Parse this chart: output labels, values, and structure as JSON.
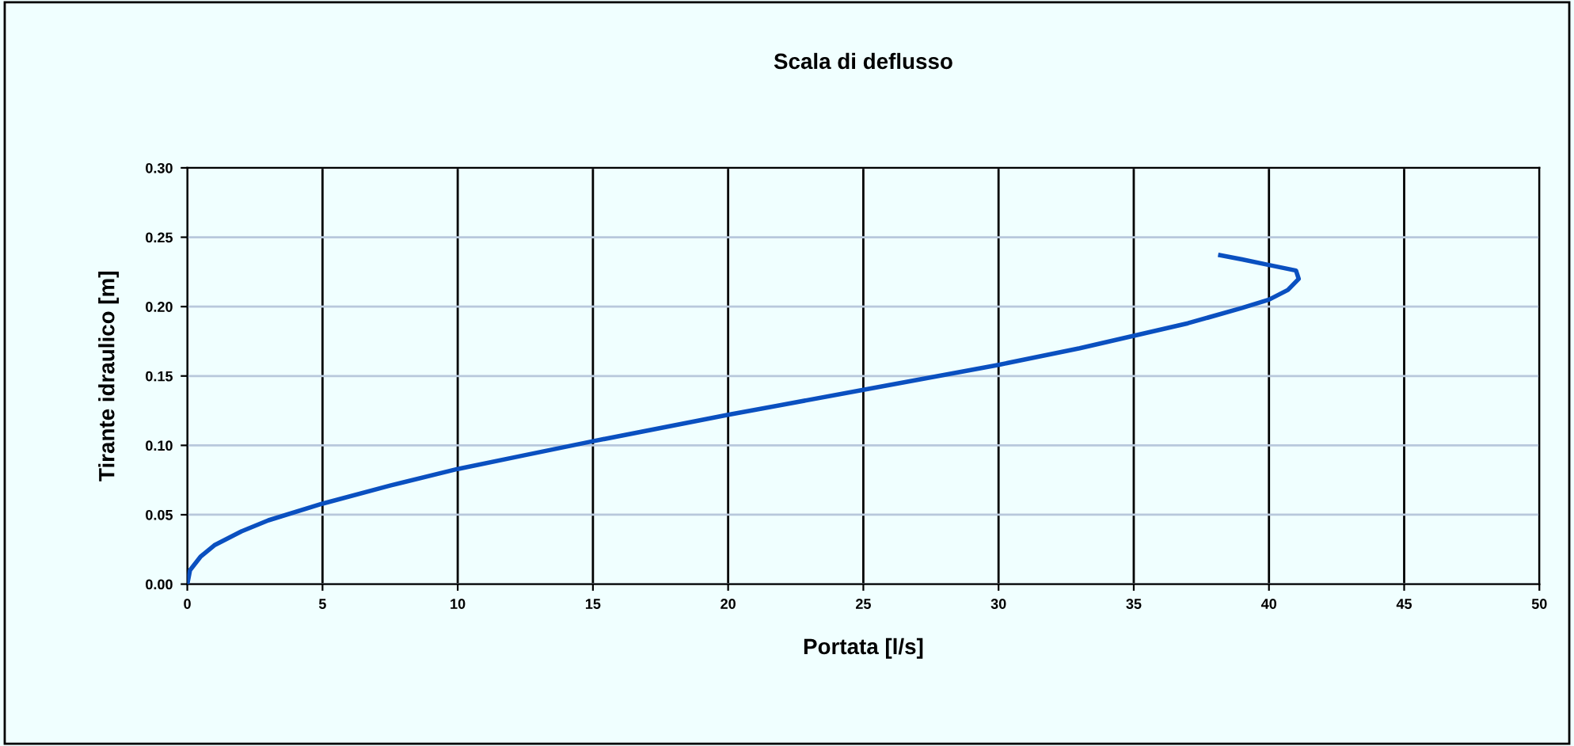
{
  "chart_data": {
    "type": "line",
    "title": "Scala di deflusso",
    "xlabel": "Portata [l/s]",
    "ylabel": "Tirante idraulico [m]",
    "series": [
      {
        "color": "#0a50c0",
        "x": [
          0,
          0.1,
          0.5,
          1,
          2,
          3,
          5,
          7.5,
          10,
          12.5,
          15,
          20,
          25,
          30,
          33,
          35,
          37,
          39,
          40,
          40.7,
          41.1,
          41.0,
          40,
          39,
          38.2
        ],
        "values": [
          0,
          0.01,
          0.02,
          0.028,
          0.038,
          0.046,
          0.058,
          0.071,
          0.083,
          0.093,
          0.103,
          0.122,
          0.14,
          0.158,
          0.17,
          0.179,
          0.188,
          0.199,
          0.205,
          0.212,
          0.22,
          0.226,
          0.23,
          0.234,
          0.237
        ]
      }
    ],
    "xlim": [
      0,
      50
    ],
    "xticks": [
      0,
      5,
      10,
      15,
      20,
      25,
      30,
      35,
      40,
      45,
      50
    ],
    "ylim": [
      0,
      0.3
    ],
    "yticks": [
      {
        "value": 0,
        "label": "0.00"
      },
      {
        "value": 0.05,
        "label": "0.05"
      },
      {
        "value": 0.1,
        "label": "0.10"
      },
      {
        "value": 0.15,
        "label": "0.15"
      },
      {
        "value": 0.2,
        "label": "0.20"
      },
      {
        "value": 0.25,
        "label": "0.25"
      },
      {
        "value": 0.3,
        "label": "0.30"
      }
    ],
    "grid": true,
    "marker": "none",
    "line_style": "solid"
  }
}
